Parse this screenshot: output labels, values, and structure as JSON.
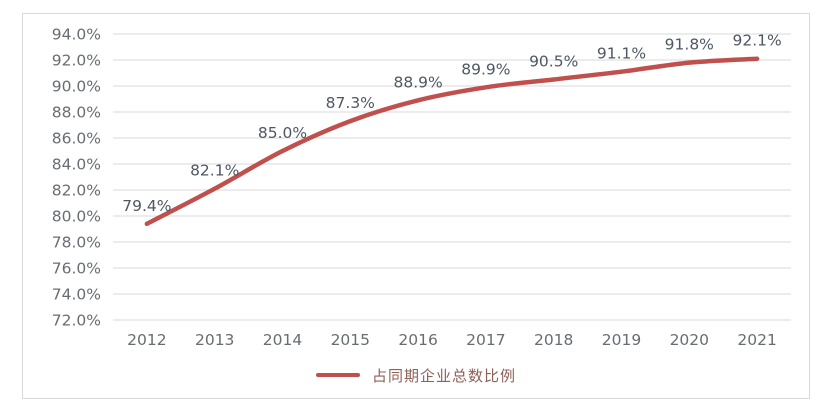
{
  "chart_data": {
    "type": "line",
    "title": "",
    "xlabel": "",
    "ylabel": "",
    "categories": [
      "2012",
      "2013",
      "2014",
      "2015",
      "2016",
      "2017",
      "2018",
      "2019",
      "2020",
      "2021"
    ],
    "series": [
      {
        "name": "占同期企业总数比例",
        "values": [
          79.4,
          82.1,
          85.0,
          87.3,
          88.9,
          89.9,
          90.5,
          91.1,
          91.8,
          92.1
        ]
      }
    ],
    "data_labels": [
      "79.4%",
      "82.1%",
      "85.0%",
      "87.3%",
      "88.9%",
      "89.9%",
      "90.5%",
      "91.1%",
      "91.8%",
      "92.1%"
    ],
    "y_ticks": [
      "94.0%",
      "92.0%",
      "90.0%",
      "88.0%",
      "86.0%",
      "84.0%",
      "82.0%",
      "80.0%",
      "78.0%",
      "76.0%",
      "74.0%",
      "72.0%"
    ],
    "y_tick_values": [
      94,
      92,
      90,
      88,
      86,
      84,
      82,
      80,
      78,
      76,
      74,
      72
    ],
    "ylim": [
      72,
      94
    ],
    "grid": true,
    "legend_position": "bottom"
  },
  "legend": {
    "label": "占同期企业总数比例"
  },
  "colors": {
    "line": "#c0504d",
    "grid": "#dadada",
    "frame_border": "#d8d8d8",
    "tick_label": "#686d74",
    "data_label": "#4e5863",
    "legend_text": "#8e6058",
    "background": "#ffffff"
  }
}
